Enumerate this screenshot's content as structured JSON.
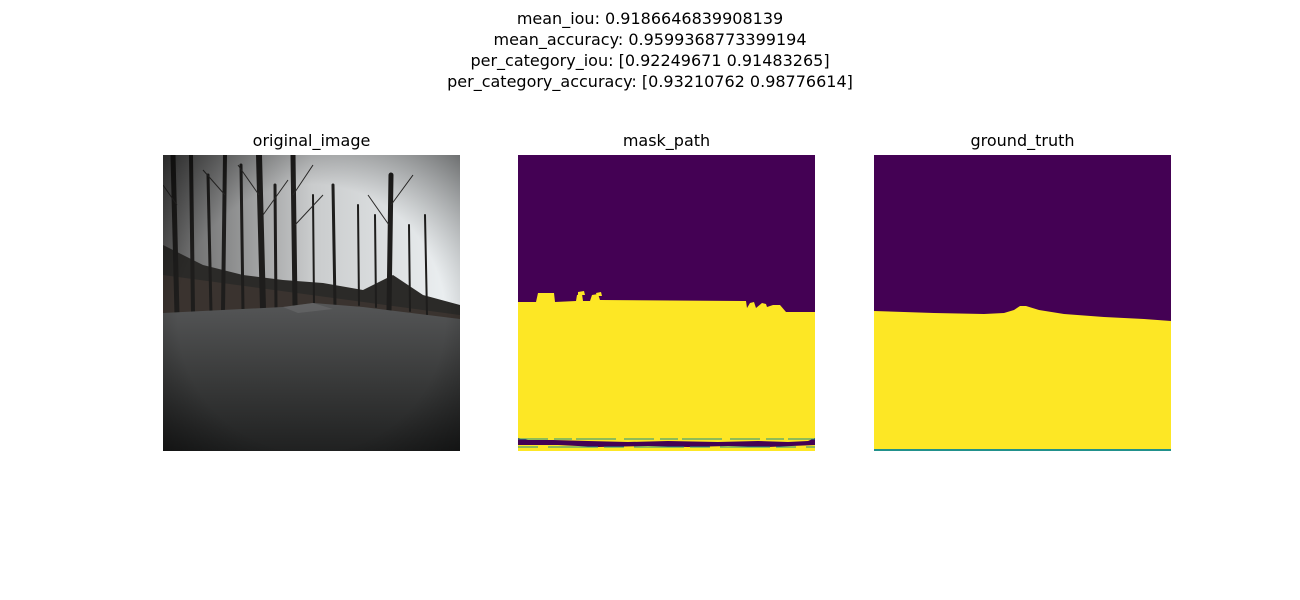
{
  "figure": {
    "suptitle_lines": [
      "mean_iou: 0.9186646839908139",
      "mean_accuracy: 0.9599368773399194",
      "per_category_iou: [0.92249671 0.91483265]",
      "per_category_accuracy: [0.93210762 0.98776614]"
    ]
  },
  "panels": [
    {
      "title": "original_image"
    },
    {
      "title": "mask_path"
    },
    {
      "title": "ground_truth"
    }
  ],
  "colors": {
    "mask_background": "#440154",
    "mask_foreground": "#fde725",
    "mask_edge": "#21918c"
  }
}
